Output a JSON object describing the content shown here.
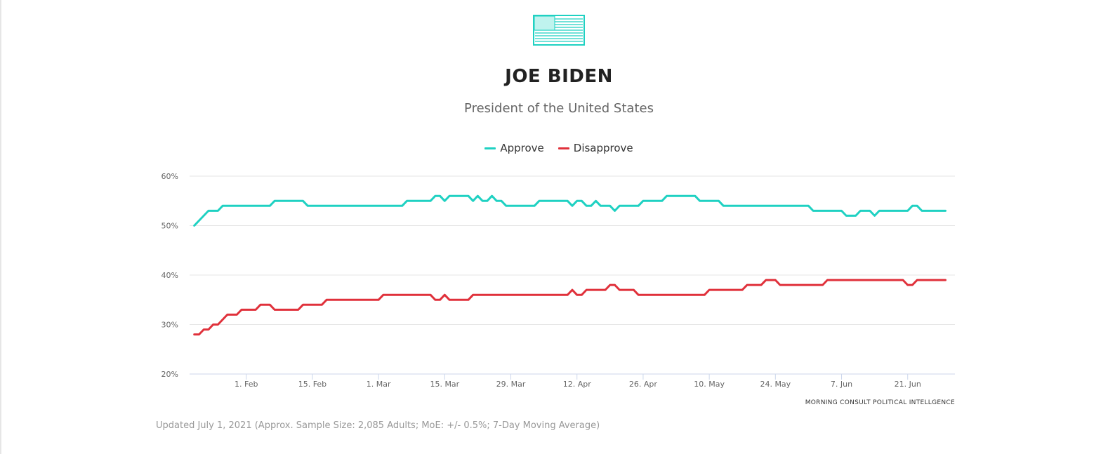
{
  "header": {
    "icon": "us-flag-icon",
    "title": "JOE BIDEN",
    "subtitle": "President of the United States"
  },
  "colors": {
    "approve": "#1fd1c2",
    "disapprove": "#e0313b",
    "brand": "#1fd1c2"
  },
  "chart_data": {
    "type": "line",
    "title": "",
    "xlabel": "",
    "ylabel": "",
    "legend": "top-center",
    "grid": true,
    "ylim": [
      20,
      60
    ],
    "yticks": [
      20,
      30,
      40,
      50,
      60
    ],
    "ytick_labels": [
      "20%",
      "30%",
      "40%",
      "50%",
      "60%"
    ],
    "xlim": [
      "2021-01-20",
      "2021-07-01"
    ],
    "xticks": [
      {
        "date": "2021-02-01",
        "label": "1. Feb"
      },
      {
        "date": "2021-02-15",
        "label": "15. Feb"
      },
      {
        "date": "2021-03-01",
        "label": "1. Mar"
      },
      {
        "date": "2021-03-15",
        "label": "15. Mar"
      },
      {
        "date": "2021-03-29",
        "label": "29. Mar"
      },
      {
        "date": "2021-04-12",
        "label": "12. Apr"
      },
      {
        "date": "2021-04-26",
        "label": "26. Apr"
      },
      {
        "date": "2021-05-10",
        "label": "10. May"
      },
      {
        "date": "2021-05-24",
        "label": "24. May"
      },
      {
        "date": "2021-06-07",
        "label": "7. Jun"
      },
      {
        "date": "2021-06-21",
        "label": "21. Jun"
      }
    ],
    "series": [
      {
        "name": "Approve",
        "color": "#1fd1c2",
        "points": [
          [
            "2021-01-21",
            50
          ],
          [
            "2021-01-24",
            53
          ],
          [
            "2021-01-26",
            53
          ],
          [
            "2021-01-27",
            54
          ],
          [
            "2021-02-06",
            54
          ],
          [
            "2021-02-07",
            55
          ],
          [
            "2021-02-13",
            55
          ],
          [
            "2021-02-14",
            54
          ],
          [
            "2021-03-06",
            54
          ],
          [
            "2021-03-07",
            55
          ],
          [
            "2021-03-12",
            55
          ],
          [
            "2021-03-13",
            56
          ],
          [
            "2021-03-14",
            56
          ],
          [
            "2021-03-15",
            55
          ],
          [
            "2021-03-16",
            56
          ],
          [
            "2021-03-20",
            56
          ],
          [
            "2021-03-21",
            55
          ],
          [
            "2021-03-22",
            56
          ],
          [
            "2021-03-23",
            55
          ],
          [
            "2021-03-24",
            55
          ],
          [
            "2021-03-25",
            56
          ],
          [
            "2021-03-26",
            55
          ],
          [
            "2021-03-27",
            55
          ],
          [
            "2021-03-28",
            54
          ],
          [
            "2021-04-03",
            54
          ],
          [
            "2021-04-04",
            55
          ],
          [
            "2021-04-10",
            55
          ],
          [
            "2021-04-11",
            54
          ],
          [
            "2021-04-12",
            55
          ],
          [
            "2021-04-13",
            55
          ],
          [
            "2021-04-14",
            54
          ],
          [
            "2021-04-15",
            54
          ],
          [
            "2021-04-16",
            55
          ],
          [
            "2021-04-17",
            54
          ],
          [
            "2021-04-19",
            54
          ],
          [
            "2021-04-20",
            53
          ],
          [
            "2021-04-21",
            54
          ],
          [
            "2021-04-25",
            54
          ],
          [
            "2021-04-26",
            55
          ],
          [
            "2021-04-30",
            55
          ],
          [
            "2021-05-01",
            56
          ],
          [
            "2021-05-07",
            56
          ],
          [
            "2021-05-08",
            55
          ],
          [
            "2021-05-12",
            55
          ],
          [
            "2021-05-13",
            54
          ],
          [
            "2021-05-31",
            54
          ],
          [
            "2021-06-01",
            53
          ],
          [
            "2021-06-07",
            53
          ],
          [
            "2021-06-08",
            52
          ],
          [
            "2021-06-10",
            52
          ],
          [
            "2021-06-11",
            53
          ],
          [
            "2021-06-13",
            53
          ],
          [
            "2021-06-14",
            52
          ],
          [
            "2021-06-15",
            53
          ],
          [
            "2021-06-21",
            53
          ],
          [
            "2021-06-22",
            54
          ],
          [
            "2021-06-23",
            54
          ],
          [
            "2021-06-24",
            53
          ],
          [
            "2021-06-29",
            53
          ]
        ]
      },
      {
        "name": "Disapprove",
        "color": "#e0313b",
        "points": [
          [
            "2021-01-21",
            28
          ],
          [
            "2021-01-22",
            28
          ],
          [
            "2021-01-23",
            29
          ],
          [
            "2021-01-24",
            29
          ],
          [
            "2021-01-25",
            30
          ],
          [
            "2021-01-26",
            30
          ],
          [
            "2021-01-28",
            32
          ],
          [
            "2021-01-30",
            32
          ],
          [
            "2021-01-31",
            33
          ],
          [
            "2021-02-03",
            33
          ],
          [
            "2021-02-04",
            34
          ],
          [
            "2021-02-06",
            34
          ],
          [
            "2021-02-07",
            33
          ],
          [
            "2021-02-12",
            33
          ],
          [
            "2021-02-13",
            34
          ],
          [
            "2021-02-17",
            34
          ],
          [
            "2021-02-18",
            35
          ],
          [
            "2021-03-01",
            35
          ],
          [
            "2021-03-02",
            36
          ],
          [
            "2021-03-12",
            36
          ],
          [
            "2021-03-13",
            35
          ],
          [
            "2021-03-14",
            35
          ],
          [
            "2021-03-15",
            36
          ],
          [
            "2021-03-16",
            35
          ],
          [
            "2021-03-20",
            35
          ],
          [
            "2021-03-21",
            36
          ],
          [
            "2021-04-10",
            36
          ],
          [
            "2021-04-11",
            37
          ],
          [
            "2021-04-12",
            36
          ],
          [
            "2021-04-13",
            36
          ],
          [
            "2021-04-14",
            37
          ],
          [
            "2021-04-18",
            37
          ],
          [
            "2021-04-19",
            38
          ],
          [
            "2021-04-20",
            38
          ],
          [
            "2021-04-21",
            37
          ],
          [
            "2021-04-24",
            37
          ],
          [
            "2021-04-25",
            36
          ],
          [
            "2021-05-09",
            36
          ],
          [
            "2021-05-10",
            37
          ],
          [
            "2021-05-17",
            37
          ],
          [
            "2021-05-18",
            38
          ],
          [
            "2021-05-21",
            38
          ],
          [
            "2021-05-22",
            39
          ],
          [
            "2021-05-24",
            39
          ],
          [
            "2021-05-25",
            38
          ],
          [
            "2021-06-03",
            38
          ],
          [
            "2021-06-04",
            39
          ],
          [
            "2021-06-20",
            39
          ],
          [
            "2021-06-21",
            38
          ],
          [
            "2021-06-22",
            38
          ],
          [
            "2021-06-23",
            39
          ],
          [
            "2021-06-29",
            39
          ]
        ]
      }
    ]
  },
  "credit": "MORNING CONSULT POLITICAL INTELLGENCE",
  "footnote": "Updated July 1, 2021 (Approx. Sample Size: 2,085 Adults; MoE: +/- 0.5%; 7-Day Moving Average)"
}
